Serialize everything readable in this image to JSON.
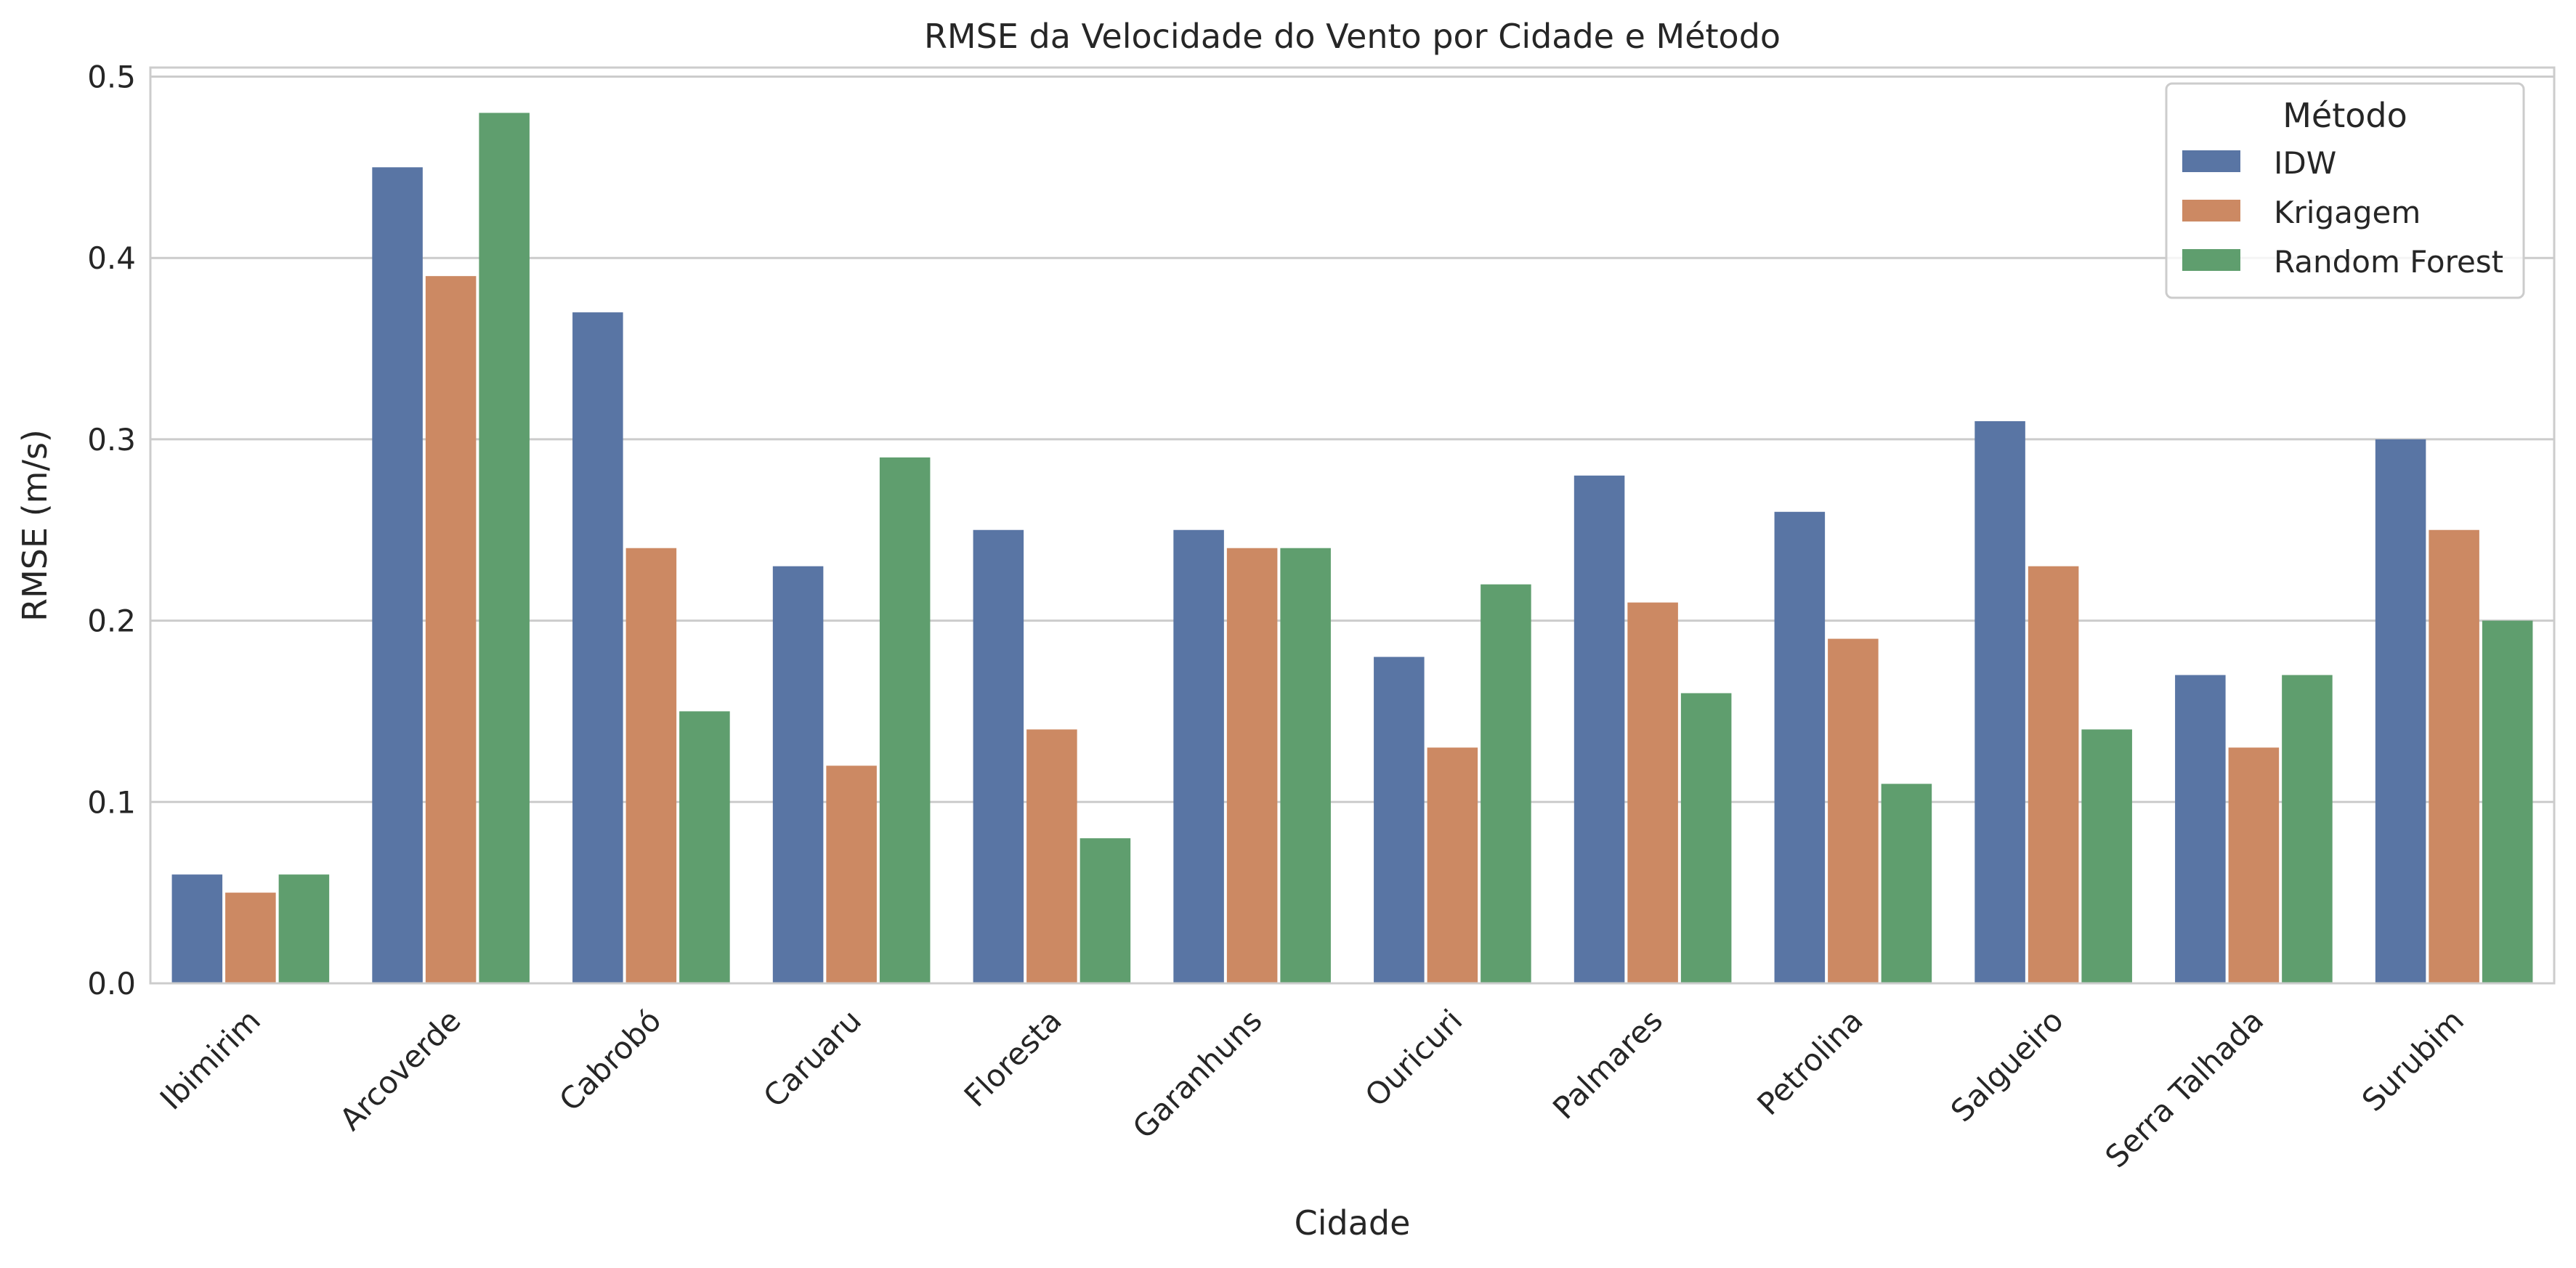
{
  "chart_data": {
    "type": "bar",
    "title": "RMSE da Velocidade do Vento por Cidade e Método",
    "xlabel": "Cidade",
    "ylabel": "RMSE (m/s)",
    "ylim": [
      0,
      0.505
    ],
    "yticks": [
      "0.0",
      "0.1",
      "0.2",
      "0.3",
      "0.4",
      "0.5"
    ],
    "grid": "horizontal",
    "legend_title": "Método",
    "legend_position": "top-right",
    "categories": [
      "Ibimirim",
      "Arcoverde",
      "Cabrobó",
      "Caruaru",
      "Floresta",
      "Garanhuns",
      "Ouricuri",
      "Palmares",
      "Petrolina",
      "Salgueiro",
      "Serra Talhada",
      "Surubim"
    ],
    "series": [
      {
        "name": "IDW",
        "color": "#5975a4",
        "values": [
          0.06,
          0.45,
          0.37,
          0.23,
          0.25,
          0.25,
          0.18,
          0.28,
          0.26,
          0.31,
          0.17,
          0.3
        ]
      },
      {
        "name": "Krigagem",
        "color": "#cc8963",
        "values": [
          0.05,
          0.39,
          0.24,
          0.12,
          0.14,
          0.24,
          0.13,
          0.21,
          0.19,
          0.23,
          0.13,
          0.25
        ]
      },
      {
        "name": "Random Forest",
        "color": "#5f9e6e",
        "values": [
          0.06,
          0.48,
          0.15,
          0.29,
          0.08,
          0.24,
          0.22,
          0.16,
          0.11,
          0.14,
          0.17,
          0.2
        ]
      }
    ]
  }
}
